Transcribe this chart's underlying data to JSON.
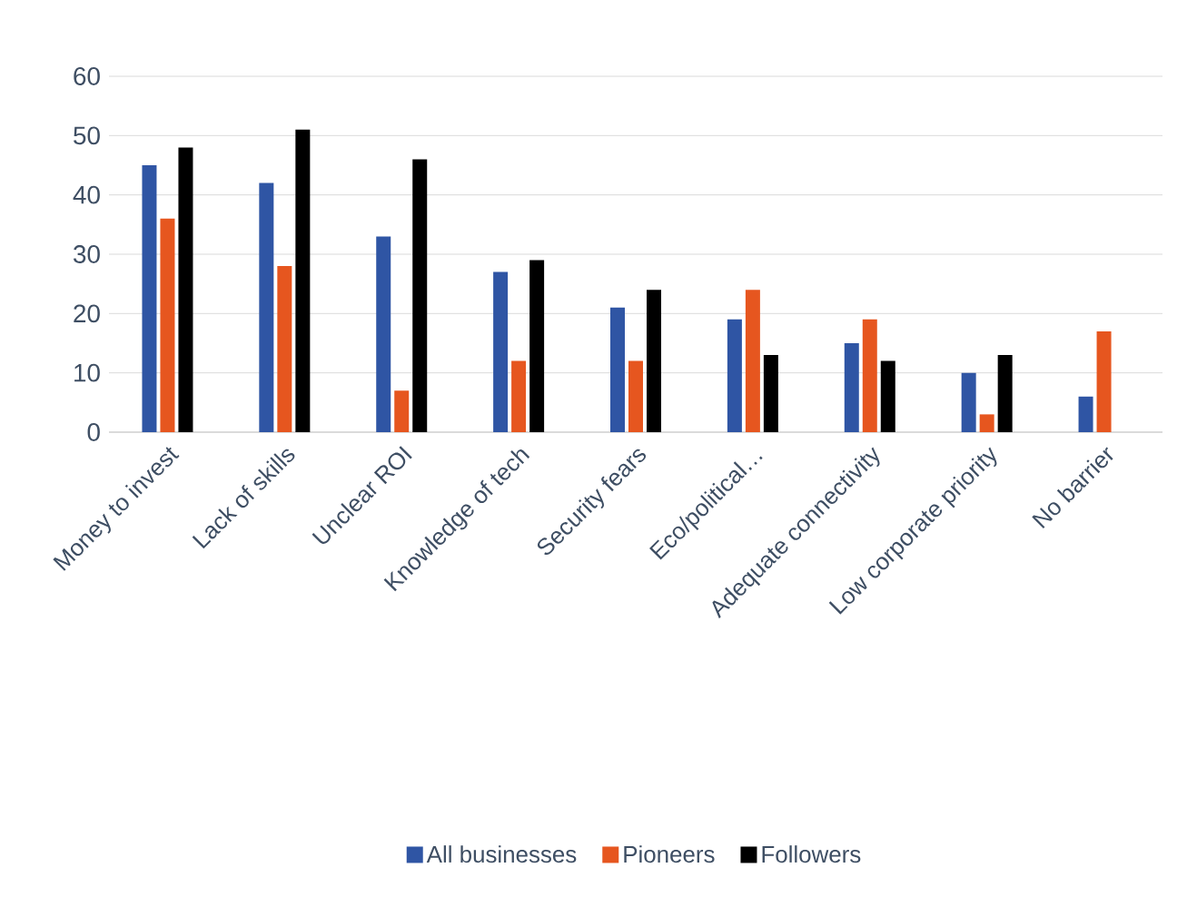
{
  "chart_data": {
    "type": "bar",
    "categories": [
      "Money to invest",
      "Lack of skills",
      "Unclear ROI",
      "Knowledge of tech",
      "Security fears",
      "Eco/political…",
      "Adequate connectivity",
      "Low corporate priority",
      "No barrier"
    ],
    "series": [
      {
        "name": "All businesses",
        "color": "#2f55a4",
        "values": [
          45,
          42,
          33,
          27,
          21,
          19,
          15,
          10,
          6
        ]
      },
      {
        "name": "Pioneers",
        "color": "#e6561f",
        "values": [
          36,
          28,
          7,
          12,
          12,
          24,
          19,
          3,
          17
        ]
      },
      {
        "name": "Followers",
        "color": "#000000",
        "values": [
          48,
          51,
          46,
          29,
          24,
          13,
          12,
          13,
          0
        ]
      }
    ],
    "ylim": [
      0,
      60
    ],
    "yticks": [
      0,
      10,
      20,
      30,
      40,
      50,
      60
    ],
    "grid": "y",
    "legend": "bottom"
  }
}
